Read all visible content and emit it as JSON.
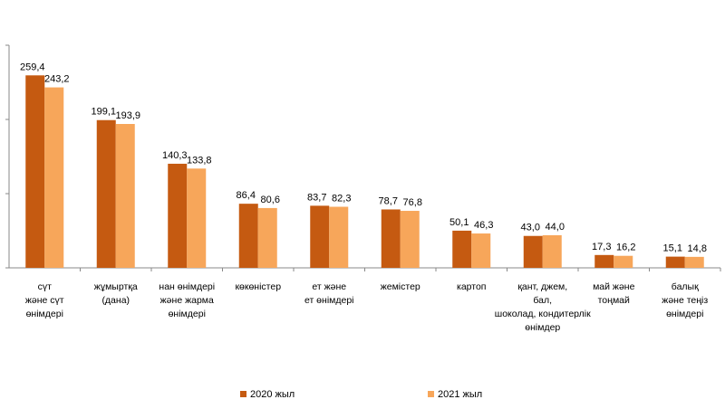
{
  "chart_data": {
    "type": "bar",
    "categories": [
      "сүт\nжәне сүт\nөнімдері",
      "жұмыртқа\n(дана)",
      "нан өнімдері\nжәне жарма\nөнімдері",
      "көкөністер",
      "ет және\nет өнімдері",
      "жемістер",
      "картоп",
      "қант, джем,\nбал,\nшоколад, кондитерлік\nөнімдер",
      "май және\nтоңмай",
      "балық\nжәне теңіз\nөнімдері"
    ],
    "series": [
      {
        "name": "2020 жыл",
        "color": "#c55a11",
        "values": [
          259.4,
          199.1,
          140.3,
          86.4,
          83.7,
          78.7,
          50.1,
          43.0,
          17.3,
          15.1
        ],
        "value_labels": [
          "259,4",
          "199,1",
          "140,3",
          "86,4",
          "83,7",
          "78,7",
          "50,1",
          "43,0",
          "17,3",
          "15,1"
        ]
      },
      {
        "name": "2021 жыл",
        "color": "#f7a65a",
        "values": [
          243.2,
          193.9,
          133.8,
          80.6,
          82.3,
          76.8,
          46.3,
          44.0,
          16.2,
          14.8
        ],
        "value_labels": [
          "243,2",
          "193,9",
          "133,8",
          "80,6",
          "82,3",
          "76,8",
          "46,3",
          "44,0",
          "16,2",
          "14,8"
        ]
      }
    ],
    "ylim": [
      0,
      300
    ],
    "yticks": [
      0,
      100,
      200,
      300
    ]
  }
}
